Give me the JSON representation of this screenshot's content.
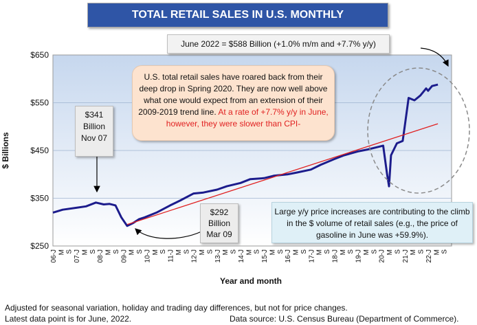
{
  "header": {
    "title": "TOTAL RETAIL SALES IN U.S. MONTHLY"
  },
  "callouts": {
    "latest": "June 2022 = $588 Billion (+1.0% m/m and +7.7% y/y)",
    "main_black": "U.S. total retail sales have roared back from their deep drop in Spring 2020. They are now well above what one would expect from an extension of their 2009-2019 trend line.",
    "main_red": "At a rate of +7.7% y/y in June, however, they were slower than CPI-",
    "peak": [
      "$341",
      "Billion",
      "Nov 07"
    ],
    "trough": [
      "$292",
      "Billion",
      "Mar 09"
    ],
    "price": "Large y/y price increases are contributing to the climb in the $ volume of retail sales (e.g., the price of gasoline in June was +59.9%)."
  },
  "footer": {
    "note1": "Adjusted for seasonal variation, holiday and trading day differences, but not for price changes.",
    "note2": "Latest data point is for June, 2022.",
    "source": "Data source: U.S. Census Bureau (Department of Commerce)."
  },
  "colors": {
    "series": "#1c1c8c",
    "trend": "#e02020",
    "title_bg": "#2f55a6"
  },
  "chart_data": {
    "type": "line",
    "ylabel": "$ Billions",
    "xlabel": "Year and month",
    "ylim": [
      250,
      650
    ],
    "yticks": [
      "$250",
      "$350",
      "$450",
      "$550",
      "$650"
    ],
    "x_tick_labels": [
      "06-J",
      "M",
      "S",
      "07-J",
      "M",
      "S",
      "08-J",
      "M",
      "S",
      "09-J",
      "M",
      "S",
      "10-J",
      "M",
      "S",
      "11-J",
      "M",
      "S",
      "12-J",
      "M",
      "S",
      "13-J",
      "M",
      "S",
      "14-J",
      "M",
      "S",
      "15-J",
      "M",
      "S",
      "16-J",
      "M",
      "S",
      "17-J",
      "M",
      "S",
      "18-J",
      "M",
      "S",
      "19-J",
      "M",
      "S",
      "20-J",
      "M",
      "S",
      "21-J",
      "M",
      "S",
      "22-J",
      "M",
      "S"
    ],
    "series": [
      {
        "x": [
          "2006-01",
          "2006-06",
          "2007-01",
          "2007-06",
          "2007-11",
          "2008-03",
          "2008-06",
          "2008-09",
          "2008-12",
          "2009-03",
          "2009-06",
          "2009-09",
          "2009-12",
          "2010-06",
          "2011-01",
          "2011-06",
          "2012-01",
          "2012-06",
          "2013-01",
          "2013-06",
          "2014-01",
          "2014-06",
          "2015-01",
          "2015-06",
          "2016-01",
          "2016-06",
          "2017-01",
          "2017-06",
          "2018-01",
          "2018-06",
          "2019-01",
          "2019-06",
          "2019-12",
          "2020-02",
          "2020-04",
          "2020-05",
          "2020-06",
          "2020-09",
          "2020-12",
          "2021-01",
          "2021-03",
          "2021-06",
          "2021-09",
          "2021-12",
          "2022-01",
          "2022-03",
          "2022-06"
        ],
        "values": [
          320,
          326,
          330,
          333,
          341,
          337,
          338,
          335,
          310,
          292,
          298,
          306,
          310,
          320,
          335,
          345,
          360,
          362,
          368,
          375,
          382,
          390,
          392,
          397,
          400,
          404,
          410,
          420,
          432,
          440,
          448,
          452,
          458,
          460,
          400,
          375,
          440,
          465,
          470,
          500,
          560,
          555,
          565,
          580,
          575,
          585,
          588
        ]
      },
      {
        "name": "",
        "x": [
          "2009-03",
          "2022-06"
        ],
        "values": [
          295,
          506
        ],
        "style": "trend"
      }
    ]
  }
}
